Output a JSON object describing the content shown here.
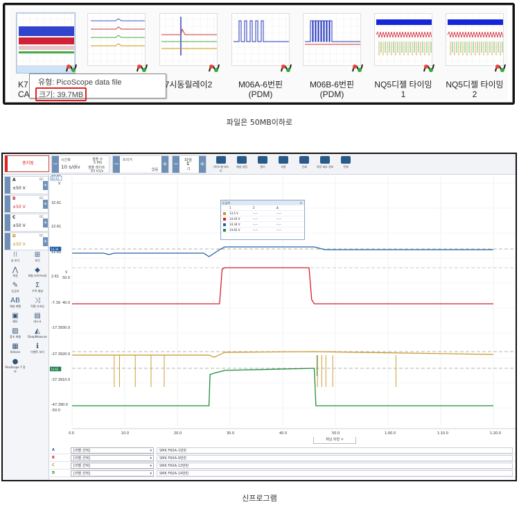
{
  "files": [
    {
      "label_line1": "K7",
      "label_line2": "CA",
      "thumb": "dense-trace"
    },
    {
      "label_line1": "",
      "label_line2": "",
      "thumb": "multi-line"
    },
    {
      "label_line1": "7시동릴레이2",
      "label_line2": "",
      "thumb": "spike"
    },
    {
      "label_line1": "M06A-6번핀",
      "label_line2": "(PDM)",
      "thumb": "pulses-blue"
    },
    {
      "label_line1": "M06B-6번핀",
      "label_line2": "(PDM)",
      "thumb": "pulses-blue2"
    },
    {
      "label_line1": "NQ5디젤 타이밍",
      "label_line2": "1",
      "thumb": "timing"
    },
    {
      "label_line1": "NQ5디젤 타이밍",
      "label_line2": "2",
      "thumb": "timing"
    }
  ],
  "tooltip": {
    "type_line": "유형: PicoScope data file",
    "size_line": "크기: 39.7MB"
  },
  "captions": {
    "top": "파일은 50MB이하로",
    "bottom": "신프로그램"
  },
  "scope": {
    "stop_button": "중지됨",
    "timebase_label": "시간축",
    "timebase_value": "10 s/div",
    "samples": [
      "샘플 수",
      "5 MS",
      "샘플 레이트",
      "83 kS/s"
    ],
    "trigger_label": "트리거",
    "trigger_mode": "없음",
    "waveform_label": "파형",
    "waveform_value": "1",
    "waveform_of": "/1",
    "toolbar_icons": [
      "가이드형 테스트",
      "채널 설정",
      "열기",
      "저장",
      "인쇄",
      "차량 세부 정보",
      "전체"
    ],
    "channels": [
      {
        "name": "A",
        "range": "±50 V",
        "coupling": "DC",
        "range_color": "#222"
      },
      {
        "name": "B",
        "range": "±50 V",
        "coupling": "DC",
        "range_color": "#d01c2c"
      },
      {
        "name": "C",
        "range": "±50 V",
        "coupling": "DC",
        "range_color": "#222"
      },
      {
        "name": "D",
        "range": "±50 V",
        "coupling": "DC",
        "range_color": "#b58a10"
      }
    ],
    "tools": [
      "뷰 보기",
      "보기",
      "측정",
      "파형 라이브러리",
      "눈금자",
      "수학 채널",
      "채널 레벨",
      "직렬 디코딩",
      "메모",
      "마스크",
      "참조 파형",
      "DeepMeasure",
      "Actions",
      "이벤트 보기",
      "PicoScope 7 정보"
    ],
    "measure_panel": {
      "title": "눈금자",
      "headers": [
        "1",
        "2",
        "Δ"
      ],
      "rows": [
        {
          "v1": "13.5 V",
          "v2": "--.--",
          "d": "--.--",
          "color": "#c8921b"
        },
        {
          "v1": "14.43 V",
          "v2": "--.--",
          "d": "--.--",
          "color": "#d01c2c"
        },
        {
          "v1": "14.34 V",
          "v2": "--.--",
          "d": "--.--",
          "color": "#1f5fa6"
        },
        {
          "v1": "14.62 V",
          "v2": "--.--",
          "d": "--.--",
          "color": "#1e8a3a"
        }
      ]
    },
    "y_axis_labels": [
      "42.61",
      "V",
      "32.61",
      "22.61",
      "12.61",
      "2.61",
      "50.0",
      "V",
      "-7.39",
      "40.0",
      "-17.39",
      "30.0",
      "-27.39",
      "20.0",
      "-37.39",
      "10.0",
      "-47.39",
      "0.0",
      "-50.0"
    ],
    "x_axis_labels": [
      "0.0",
      "10.0",
      "20.0",
      "30.0",
      "40.0",
      "50.0",
      "1:00.0",
      "1:10.0",
      "1:20.0"
    ],
    "ruler_tags": [
      "14.34",
      "14.62",
      "42.61"
    ],
    "channel_tab": "채널 파형",
    "bottom_rows": [
      {
        "ch": "A",
        "select": "[라벨 선택]",
        "name": "SMK F60A-1번핀",
        "color": "#1f5fa6"
      },
      {
        "ch": "B",
        "select": "[라벨 선택]",
        "name": "SMK F60A-9번핀",
        "color": "#d01c2c"
      },
      {
        "ch": "C",
        "select": "[라벨 선택]",
        "name": "SMK F60A-13번핀",
        "color": "#c8921b"
      },
      {
        "ch": "D",
        "select": "[라벨 선택]",
        "name": "SMK F60A-14번핀",
        "color": "#1e8a3a"
      }
    ],
    "colors": {
      "A": "#1f5fa6",
      "B": "#d01c2c",
      "C": "#c8921b",
      "D": "#1e8a3a"
    }
  }
}
